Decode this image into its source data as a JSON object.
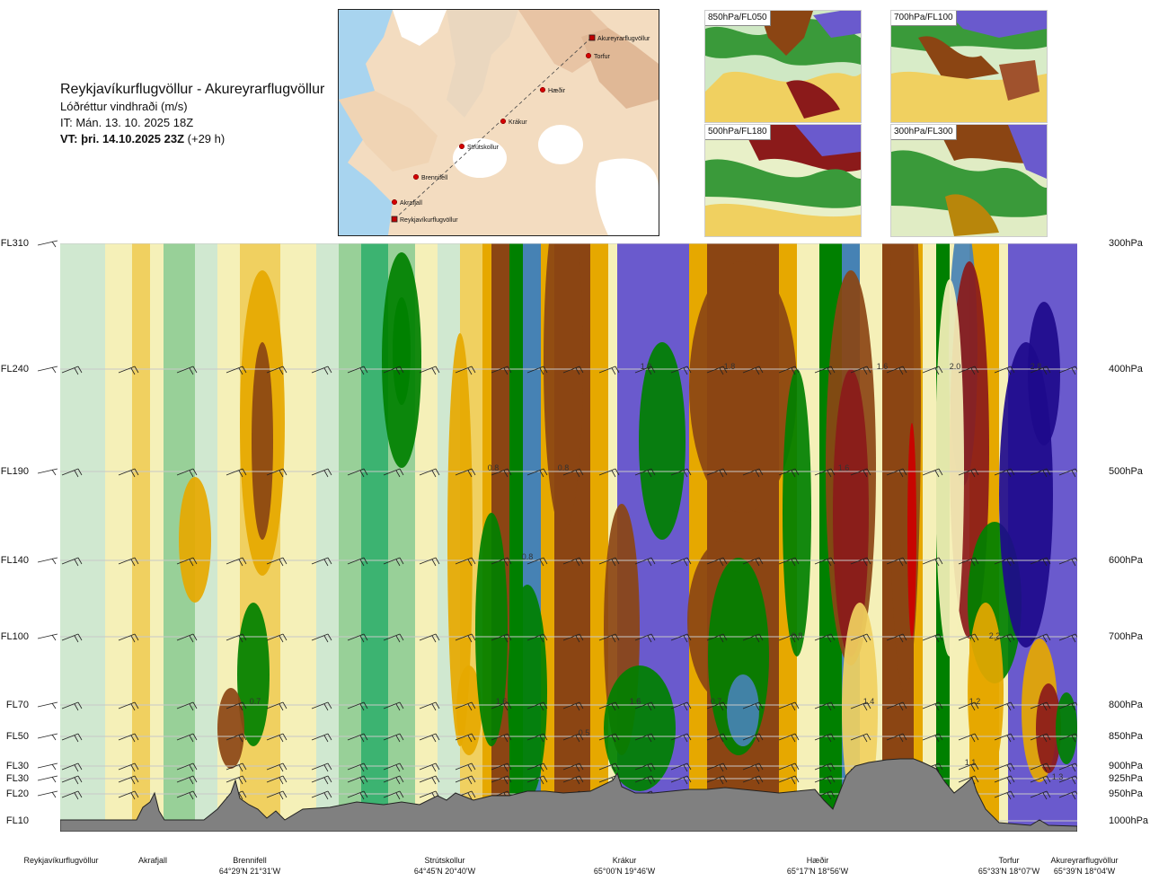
{
  "header": {
    "route": "Reykjavíkurflugvöllur - Akureyrarflugvöllur",
    "quantity": "Lóðréttur vindhraði (m/s)",
    "issue_time": "IT: Mán. 13. 10. 2025 18Z",
    "valid_bold": "VT: þri. 14.10.2025 23Z",
    "valid_rest": " (+29 h)"
  },
  "map": {
    "stations": [
      {
        "name": "Akureyrarflugvöllur"
      },
      {
        "name": "Torfur"
      },
      {
        "name": "Hæðir"
      },
      {
        "name": "Krákur"
      },
      {
        "name": "Strútskollur"
      },
      {
        "name": "Brennifell"
      },
      {
        "name": "Akrafjall"
      },
      {
        "name": "Reykjavíkurflugvöllur"
      }
    ]
  },
  "thumbnails": [
    {
      "label": "850hPa/FL050"
    },
    {
      "label": "700hPa/FL100"
    },
    {
      "label": "500hPa/FL180"
    },
    {
      "label": "300hPa/FL300"
    }
  ],
  "levels": [
    {
      "fl": "FL310",
      "hpa": "300hPa"
    },
    {
      "fl": "FL240",
      "hpa": "400hPa"
    },
    {
      "fl": "FL190",
      "hpa": "500hPa"
    },
    {
      "fl": "FL140",
      "hpa": "600hPa"
    },
    {
      "fl": "FL100",
      "hpa": "700hPa"
    },
    {
      "fl": "FL70",
      "hpa": "800hPa"
    },
    {
      "fl": "FL50",
      "hpa": "850hPa"
    },
    {
      "fl": "FL30",
      "hpa": "900hPa"
    },
    {
      "fl": "FL30",
      "hpa": "925hPa"
    },
    {
      "fl": "FL20",
      "hpa": "950hPa"
    },
    {
      "fl": "FL10",
      "hpa": "1000hPa"
    }
  ],
  "places": [
    {
      "name": "Reykjavíkurflugvöllur",
      "coord": ""
    },
    {
      "name": "Akrafjall",
      "coord": ""
    },
    {
      "name": "Brennifell",
      "coord": "64°29'N 21°31'W"
    },
    {
      "name": "Strútskollur",
      "coord": "64°45'N 20°40'W"
    },
    {
      "name": "Krákur",
      "coord": "65°00'N 19°46'W"
    },
    {
      "name": "Hæðir",
      "coord": "65°17'N 18°56'W"
    },
    {
      "name": "Torfur",
      "coord": "65°33'N 18°07'W"
    },
    {
      "name": "Akureyrarflugvöllur",
      "coord": "65°39'N 18°04'W"
    }
  ],
  "chart_data": {
    "type": "heatmap",
    "title": "Lóðréttur vindhraði (m/s)",
    "x_stations": [
      "Reykjavíkurflugvöllur",
      "Akrafjall",
      "Brennifell",
      "Strútskollur",
      "Krákur",
      "Hæðir",
      "Torfur",
      "Akureyrarflugvöllur"
    ],
    "y_levels_hpa": [
      300,
      400,
      500,
      600,
      700,
      800,
      850,
      900,
      925,
      950,
      1000
    ],
    "color_scale": [
      "#1e0a8c",
      "#6a5acd",
      "#4682b4",
      "#008000",
      "#3cb371",
      "#98d098",
      "#d0e8d0",
      "#f5f0b8",
      "#f0d060",
      "#e6a800",
      "#8b4513",
      "#8b1a1a",
      "#cc0000"
    ],
    "value_labels": [
      "1.9",
      "1.8",
      "1.6",
      "2.0",
      "2.8",
      "0.8",
      "0.8",
      "0.8",
      "1.6",
      "0.8",
      "1.6",
      "2.2",
      "0.7",
      "1.6",
      "1.6",
      "0.7",
      "1.4",
      "1.2",
      "0.5",
      "1.1",
      "1.3"
    ],
    "terrain_color": "#808080"
  }
}
